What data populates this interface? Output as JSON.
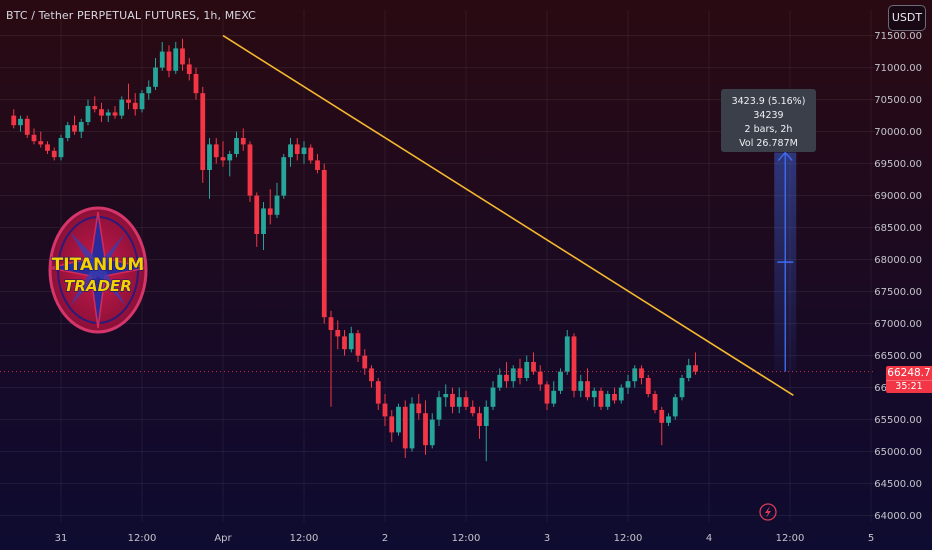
{
  "header": {
    "title": "BTC / Tether PERPETUAL FUTURES, 1h, MEXC"
  },
  "currency_button": {
    "label": "USDT"
  },
  "logo": {
    "line1": "TITANIUM",
    "line2": "TRADER"
  },
  "measure_tooltip": {
    "line1": "3423.9 (5.16%) 34239",
    "line2": "2 bars, 2h",
    "line3": "Vol 26.787M"
  },
  "price_tag": {
    "price": "66248.7",
    "countdown": "35:21"
  },
  "colors": {
    "up": "#26a69a",
    "down": "#f23645",
    "trendline": "#f5b82e",
    "measure": "#3d6cf0",
    "tooltip_bg": "#3b3f4a"
  },
  "icons": {
    "bottom": "lightning-icon"
  },
  "chart_data": {
    "type": "candlestick",
    "symbol": "BTC / Tether PERPETUAL FUTURES",
    "interval": "1h",
    "exchange": "MEXC",
    "ylim": [
      63900,
      71900
    ],
    "y_ticks": [
      64000,
      64500,
      65000,
      65500,
      66000,
      66500,
      67000,
      67500,
      68000,
      68500,
      69000,
      69500,
      70000,
      70500,
      71000,
      71500
    ],
    "x_ticks": [
      {
        "label": "31",
        "bar": 0
      },
      {
        "label": "12:00",
        "bar": 12
      },
      {
        "label": "Apr",
        "bar": 24
      },
      {
        "label": "12:00",
        "bar": 36
      },
      {
        "label": "2",
        "bar": 48
      },
      {
        "label": "12:00",
        "bar": 60
      },
      {
        "label": "3",
        "bar": 72
      },
      {
        "label": "12:00",
        "bar": 84
      },
      {
        "label": "4",
        "bar": 96
      },
      {
        "label": "12:00",
        "bar": 108
      },
      {
        "label": "5",
        "bar": 120
      }
    ],
    "first_bar": -7,
    "candles": [
      [
        70250,
        70350,
        70050,
        70100
      ],
      [
        70100,
        70250,
        70000,
        70200
      ],
      [
        70200,
        70250,
        69900,
        69950
      ],
      [
        69950,
        70050,
        69800,
        69850
      ],
      [
        69850,
        70000,
        69750,
        69800
      ],
      [
        69800,
        69850,
        69650,
        69700
      ],
      [
        69700,
        69750,
        69550,
        69600
      ],
      [
        69600,
        69950,
        69550,
        69900
      ],
      [
        69900,
        70150,
        69850,
        70100
      ],
      [
        70100,
        70250,
        69950,
        70000
      ],
      [
        70000,
        70200,
        69900,
        70150
      ],
      [
        70150,
        70500,
        70100,
        70400
      ],
      [
        70400,
        70550,
        70300,
        70350
      ],
      [
        70350,
        70450,
        70150,
        70250
      ],
      [
        70250,
        70350,
        70150,
        70300
      ],
      [
        70300,
        70400,
        70200,
        70250
      ],
      [
        70250,
        70550,
        70200,
        70500
      ],
      [
        70500,
        70750,
        70350,
        70450
      ],
      [
        70450,
        70600,
        70250,
        70350
      ],
      [
        70350,
        70650,
        70300,
        70600
      ],
      [
        70600,
        70800,
        70500,
        70700
      ],
      [
        70700,
        71150,
        70650,
        71000
      ],
      [
        71000,
        71400,
        70950,
        71250
      ],
      [
        71250,
        71350,
        70850,
        70950
      ],
      [
        70950,
        71400,
        70900,
        71300
      ],
      [
        71300,
        71450,
        70950,
        71050
      ],
      [
        71050,
        71150,
        70800,
        70900
      ],
      [
        70900,
        71000,
        70500,
        70600
      ],
      [
        70600,
        70700,
        69200,
        69400
      ],
      [
        69400,
        69900,
        68950,
        69800
      ],
      [
        69800,
        69900,
        69500,
        69600
      ],
      [
        69600,
        69850,
        69450,
        69550
      ],
      [
        69550,
        69700,
        69300,
        69650
      ],
      [
        69650,
        70000,
        69600,
        69900
      ],
      [
        69900,
        70050,
        69700,
        69800
      ],
      [
        69800,
        69850,
        68900,
        69000
      ],
      [
        69000,
        69050,
        68200,
        68400
      ],
      [
        68400,
        68900,
        68150,
        68800
      ],
      [
        68800,
        69100,
        68550,
        68700
      ],
      [
        68700,
        69200,
        68650,
        69000
      ],
      [
        69000,
        69650,
        68950,
        69600
      ],
      [
        69600,
        69900,
        69450,
        69800
      ],
      [
        69800,
        69900,
        69550,
        69650
      ],
      [
        69650,
        69850,
        69500,
        69750
      ],
      [
        69750,
        69800,
        69500,
        69550
      ],
      [
        69550,
        69650,
        69350,
        69400
      ],
      [
        69400,
        69500,
        67000,
        67100
      ],
      [
        67100,
        67200,
        65700,
        66900
      ],
      [
        66900,
        67050,
        66600,
        66800
      ],
      [
        66800,
        66900,
        66500,
        66600
      ],
      [
        66600,
        66950,
        66550,
        66850
      ],
      [
        66850,
        66900,
        66400,
        66500
      ],
      [
        66500,
        66600,
        66200,
        66300
      ],
      [
        66300,
        66350,
        66000,
        66100
      ],
      [
        66100,
        66150,
        65650,
        65750
      ],
      [
        65750,
        65900,
        65400,
        65550
      ],
      [
        65550,
        65650,
        65150,
        65300
      ],
      [
        65300,
        65750,
        65250,
        65700
      ],
      [
        65700,
        65800,
        64900,
        65050
      ],
      [
        65050,
        65850,
        65000,
        65750
      ],
      [
        65750,
        65900,
        65500,
        65600
      ],
      [
        65600,
        65800,
        64950,
        65100
      ],
      [
        65100,
        65600,
        65050,
        65500
      ],
      [
        65500,
        65950,
        65400,
        65850
      ],
      [
        65850,
        66050,
        65700,
        65900
      ],
      [
        65900,
        66000,
        65600,
        65700
      ],
      [
        65700,
        66000,
        65600,
        65850
      ],
      [
        65850,
        65950,
        65650,
        65700
      ],
      [
        65700,
        65800,
        65550,
        65600
      ],
      [
        65600,
        65700,
        65200,
        65400
      ],
      [
        65400,
        65800,
        64850,
        65700
      ],
      [
        65700,
        66100,
        65650,
        66000
      ],
      [
        66000,
        66300,
        65950,
        66200
      ],
      [
        66200,
        66400,
        66000,
        66100
      ],
      [
        66100,
        66350,
        66000,
        66300
      ],
      [
        66300,
        66450,
        66050,
        66150
      ],
      [
        66150,
        66500,
        66100,
        66400
      ],
      [
        66400,
        66550,
        66200,
        66250
      ],
      [
        66250,
        66350,
        65950,
        66050
      ],
      [
        66050,
        66100,
        65650,
        65750
      ],
      [
        65750,
        66100,
        65700,
        65950
      ],
      [
        65950,
        66300,
        65900,
        66250
      ],
      [
        66250,
        66900,
        66200,
        66800
      ],
      [
        66800,
        66850,
        65850,
        65950
      ],
      [
        65950,
        66200,
        65850,
        66100
      ],
      [
        66100,
        66300,
        65800,
        65850
      ],
      [
        65850,
        66000,
        65700,
        65950
      ],
      [
        65950,
        66000,
        65650,
        65700
      ],
      [
        65700,
        65950,
        65650,
        65900
      ],
      [
        65900,
        66000,
        65750,
        65800
      ],
      [
        65800,
        66050,
        65750,
        66000
      ],
      [
        66000,
        66200,
        65900,
        66100
      ],
      [
        66100,
        66350,
        66000,
        66300
      ],
      [
        66300,
        66350,
        66050,
        66150
      ],
      [
        66150,
        66200,
        65850,
        65900
      ],
      [
        65900,
        65950,
        65600,
        65650
      ],
      [
        65650,
        65700,
        65100,
        65450
      ],
      [
        65450,
        65600,
        65400,
        65550
      ],
      [
        65550,
        65900,
        65500,
        65850
      ],
      [
        65850,
        66200,
        65800,
        66150
      ],
      [
        66150,
        66450,
        66100,
        66350
      ],
      [
        66350,
        66550,
        66200,
        66250
      ]
    ],
    "trendline": {
      "start": {
        "bar": 24,
        "price": 71500
      },
      "end": {
        "bar": 108.5,
        "price": 65880
      }
    },
    "measure": {
      "from_bar": 107,
      "from_price": 66248.7,
      "to_price": 69672.6,
      "change": "3423.9 (5.16%) 34239",
      "bars": "2 bars, 2h",
      "volume": "Vol 26.787M"
    },
    "current_price": 66248.7
  }
}
